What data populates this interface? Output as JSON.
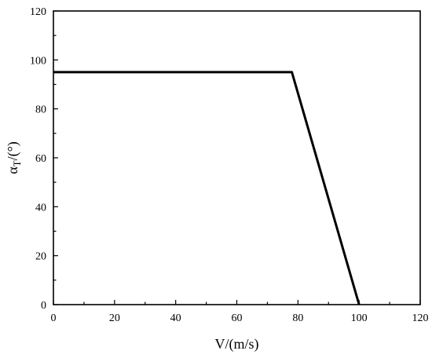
{
  "chart_data": {
    "type": "line",
    "title": "",
    "xlabel": "V/(m/s)",
    "ylabel": "α",
    "ylabel_subscript": "T",
    "ylabel_suffix": "/(°)",
    "xlim": [
      0,
      120
    ],
    "ylim": [
      0,
      120
    ],
    "xticks": [
      0,
      20,
      40,
      60,
      80,
      100,
      120
    ],
    "yticks": [
      0,
      20,
      40,
      60,
      80,
      100,
      120
    ],
    "grid": false,
    "series": [
      {
        "x": [
          0,
          78,
          100
        ],
        "y": [
          95,
          95,
          0
        ],
        "color": "#000000"
      }
    ]
  }
}
